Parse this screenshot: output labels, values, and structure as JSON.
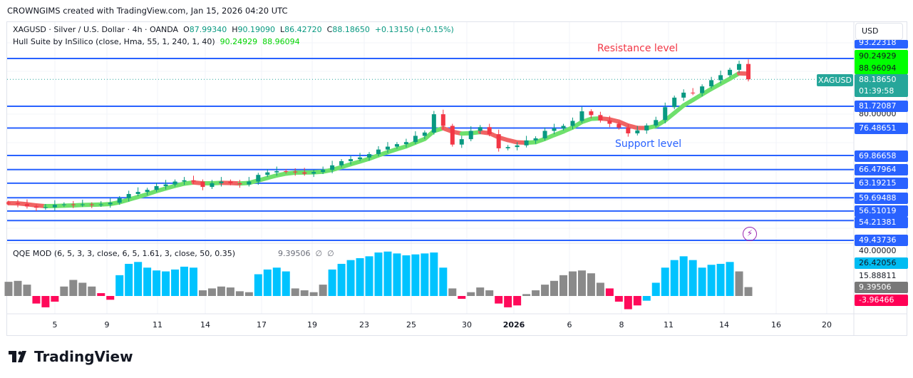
{
  "credit": "CROWNGIMS created with TradingView.com, Jan 15, 2026 04:20 UTC",
  "legend": {
    "symbol": "XAGUSD · Silver / U.S. Dollar · 4h · OANDA",
    "o_label": "O",
    "o": "87.99340",
    "h_label": "H",
    "h": "90.19090",
    "l_label": "L",
    "l": "86.42720",
    "c_label": "C",
    "c": "88.18650",
    "change": "+0.13150 (+0.15%)",
    "hull_name": "Hull Suite by InSilico (close, Hma, 55, 1, 240, 1, 40)",
    "hull_v1": "90.24929",
    "hull_v2": "88.96094"
  },
  "qqe": {
    "name": "QQE MOD (6, 5, 3, 3, close, 6, 5, 1.61, 3, close, 50, 0.35)",
    "value": "9.39506",
    "na1": "∅",
    "na2": "∅"
  },
  "price_axis": {
    "currency": "USD",
    "top_level": "93.22318",
    "hull1": "90.24929",
    "hull2": "88.96094",
    "last": "88.18650",
    "countdown": "01:39:58",
    "symbol_tag": "XAGUSD",
    "tick80": "80.00000",
    "qqe_ticks": {
      "t40": "40.00000",
      "t26": "26.42056",
      "t15": "15.88811",
      "t9": "9.39506",
      "tneg": "-3.96466"
    }
  },
  "annotations": {
    "resistance": "Resistance level",
    "support": "Support level"
  },
  "levels": [
    "93.22318",
    "81.72087",
    "76.48651",
    "69.86658",
    "66.47964",
    "63.19215",
    "59.69488",
    "56.51019",
    "54.21381",
    "49.43736"
  ],
  "colors": {
    "level": "#2962ff",
    "up": "#089981",
    "down": "#f23645",
    "hull_up": "#6fe06c",
    "hull_down": "#f06464",
    "qqe_blue": "#00c3ff",
    "qqe_gray": "#8a8a8a",
    "qqe_red": "#ff0a5a",
    "resistance": "#f23645",
    "support": "#2962ff"
  },
  "x_ticks": [
    "5",
    "9",
    "11",
    "14",
    "17",
    "19",
    "23",
    "25",
    "30",
    "2026",
    "6",
    "8",
    "11",
    "14",
    "16",
    "20"
  ],
  "logo": "TradingView",
  "chart_data": {
    "type": "candlestick",
    "symbol": "XAGUSD",
    "timeframe": "4h",
    "price_scale": "linear",
    "grid": true,
    "closes": [
      58.4,
      58.2,
      57.6,
      57.3,
      57.4,
      58.0,
      58.1,
      58.0,
      58.1,
      58.0,
      58.1,
      58.5,
      59.6,
      60.6,
      61.1,
      61.6,
      62.5,
      62.9,
      63.6,
      63.9,
      63.6,
      62.3,
      63.2,
      63.6,
      63.2,
      62.9,
      63.6,
      65.2,
      65.8,
      66.1,
      66.0,
      65.8,
      65.5,
      65.9,
      66.4,
      67.5,
      68.5,
      69.0,
      69.4,
      70.2,
      71.3,
      72.0,
      72.6,
      73.1,
      74.6,
      75.4,
      79.8,
      77.0,
      72.5,
      73.8,
      75.8,
      76.7,
      75.0,
      71.6,
      71.9,
      72.3,
      73.5,
      74.0,
      75.8,
      76.4,
      77.0,
      78.2,
      80.5,
      79.6,
      78.3,
      77.5,
      76.6,
      75.2,
      75.9,
      77.1,
      78.4,
      81.5,
      83.8,
      85.0,
      84.9,
      86.5,
      88.0,
      89.2,
      90.5,
      91.9,
      88.2
    ],
    "qqe_values": [
      15,
      16,
      12,
      -8,
      -12,
      -6,
      10,
      17,
      14,
      10,
      3,
      -4,
      22,
      34,
      36,
      30,
      27,
      26,
      28,
      31,
      30,
      6,
      8,
      10,
      9,
      5,
      4,
      23,
      28,
      30,
      26,
      8,
      6,
      4,
      12,
      28,
      34,
      38,
      40,
      42,
      46,
      47,
      45,
      43,
      44,
      45,
      46,
      30,
      8,
      -3,
      4,
      9,
      6,
      -8,
      -12,
      -10,
      2,
      6,
      12,
      16,
      22,
      26,
      27,
      24,
      14,
      8,
      -6,
      -14,
      -10,
      -5,
      14,
      30,
      38,
      42,
      38,
      30,
      33,
      34,
      36,
      26,
      9.4
    ],
    "qqe_state": "gggrrrggggrrbbbbbbbbbggggggbbbbggggbbbbbbbbbbbbbgrgggrrrgggggggggrrrrbbbbbbbbbbg",
    "qqe_range": [
      -14,
      48
    ]
  }
}
